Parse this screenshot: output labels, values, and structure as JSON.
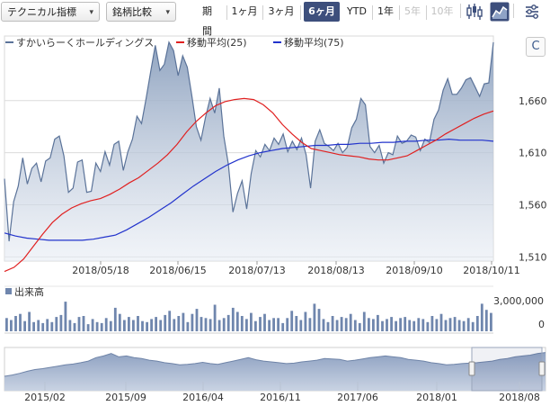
{
  "toolbar": {
    "technical_label": "テクニカル指標",
    "compare_label": "銘柄比較",
    "period_label": "期間",
    "periods": [
      {
        "label": "1ヶ月",
        "state": "normal"
      },
      {
        "label": "3ヶ月",
        "state": "normal"
      },
      {
        "label": "6ヶ月",
        "state": "active"
      },
      {
        "label": "YTD",
        "state": "normal"
      },
      {
        "label": "1年",
        "state": "normal"
      },
      {
        "label": "5年",
        "state": "disabled"
      },
      {
        "label": "10年",
        "state": "disabled"
      }
    ],
    "chart_type_icons": [
      "candlestick-icon",
      "area-chart-icon",
      "settings-icon"
    ],
    "active_chart_type": "area-chart-icon",
    "refresh_symbol": "C"
  },
  "colors": {
    "price_line": "#5b7399",
    "price_fill_top": "#8a9fbd",
    "ma25": "#e02020",
    "ma75": "#2233cc",
    "volume_bar": "#6f86ad",
    "accent": "#3d4f7c"
  },
  "chart_data": [
    {
      "type": "area",
      "legend": [
        "すかいらーくホールディングス",
        "移動平均(25)",
        "移動平均(75)"
      ],
      "legend_position": "top-left",
      "x_ticks": [
        "2018/05/18",
        "2018/06/15",
        "2018/07/13",
        "2018/08/13",
        "2018/09/10",
        "2018/10/11"
      ],
      "y_ticks": [
        1510,
        1560,
        1610,
        1660
      ],
      "y_tick_labels": [
        "1,510",
        "1,560",
        "1,610",
        "1,660"
      ],
      "ylim": [
        1506,
        1722
      ],
      "grid": true,
      "price": [
        1585,
        1525,
        1563,
        1578,
        1605,
        1580,
        1595,
        1600,
        1582,
        1602,
        1605,
        1623,
        1626,
        1607,
        1572,
        1576,
        1601,
        1603,
        1572,
        1573,
        1600,
        1592,
        1611,
        1598,
        1618,
        1621,
        1593,
        1611,
        1623,
        1645,
        1638,
        1662,
        1688,
        1713,
        1689,
        1695,
        1716,
        1708,
        1684,
        1703,
        1692,
        1665,
        1635,
        1622,
        1644,
        1662,
        1648,
        1672,
        1626,
        1599,
        1553,
        1571,
        1583,
        1556,
        1590,
        1612,
        1606,
        1618,
        1612,
        1624,
        1618,
        1628,
        1611,
        1621,
        1613,
        1624,
        1608,
        1576,
        1621,
        1632,
        1619,
        1616,
        1612,
        1619,
        1610,
        1615,
        1634,
        1642,
        1662,
        1656,
        1616,
        1610,
        1617,
        1600,
        1610,
        1608,
        1626,
        1619,
        1621,
        1627,
        1625,
        1612,
        1623,
        1620,
        1642,
        1651,
        1670,
        1681,
        1666,
        1666,
        1672,
        1680,
        1682,
        1673,
        1664,
        1676,
        1677,
        1716
      ],
      "ma25": [
        1496,
        1500,
        1508,
        1520,
        1532,
        1543,
        1551,
        1557,
        1561,
        1564,
        1566,
        1570,
        1575,
        1581,
        1586,
        1593,
        1600,
        1608,
        1618,
        1630,
        1640,
        1648,
        1655,
        1659,
        1661,
        1662,
        1661,
        1656,
        1648,
        1637,
        1628,
        1620,
        1614,
        1612,
        1610,
        1608,
        1607,
        1606,
        1604,
        1603,
        1603,
        1605,
        1607,
        1612,
        1617,
        1622,
        1628,
        1633,
        1638,
        1643,
        1647,
        1650
      ],
      "ma75": [
        1533,
        1530,
        1528,
        1527,
        1526,
        1526,
        1526,
        1526,
        1527,
        1529,
        1531,
        1536,
        1542,
        1548,
        1555,
        1562,
        1570,
        1578,
        1585,
        1592,
        1598,
        1603,
        1607,
        1610,
        1612,
        1614,
        1615,
        1616,
        1617,
        1617,
        1618,
        1618,
        1619,
        1619,
        1620,
        1620,
        1621,
        1621,
        1622,
        1622,
        1623,
        1622,
        1622,
        1622,
        1621
      ]
    },
    {
      "type": "bar",
      "title": "出来高",
      "y_tick_labels": [
        "3,000,000",
        "0"
      ],
      "ylim": [
        0,
        3000000
      ],
      "values": [
        1300000,
        1100000,
        1500000,
        1700000,
        1000000,
        1900000,
        900000,
        1100000,
        800000,
        1200000,
        900000,
        1400000,
        1600000,
        2900000,
        1100000,
        800000,
        1400000,
        1500000,
        700000,
        1200000,
        900000,
        800000,
        1300000,
        1000000,
        2300000,
        1700000,
        1100000,
        1400000,
        1100000,
        1500000,
        1000000,
        900000,
        1200000,
        1400000,
        1100000,
        1600000,
        2000000,
        1200000,
        1500000,
        1800000,
        900000,
        1700000,
        2200000,
        1400000,
        1300000,
        1200000,
        2600000,
        1100000,
        1300000,
        1600000,
        2300000,
        1900000,
        1500000,
        1200000,
        1800000,
        1000000,
        1400000,
        1700000,
        1100000,
        1300000,
        1300000,
        800000,
        1300000,
        2000000,
        1500000,
        1100000,
        1900000,
        1300000,
        2700000,
        2200000,
        1200000,
        900000,
        1500000,
        1100000,
        1400000,
        1300000,
        1700000,
        1100000,
        800000,
        1900000,
        1300000,
        1200000,
        1600000,
        1000000,
        1200000,
        1400000,
        1000000,
        1300000,
        1400000,
        1100000,
        1000000,
        1300000,
        1200000,
        900000,
        1500000,
        1200000,
        1700000,
        1100000,
        1300000,
        1400000,
        1100000,
        1000000,
        1300000,
        900000,
        1500000,
        2700000,
        2100000,
        1800000
      ]
    },
    {
      "type": "area",
      "role": "navigator",
      "x_ticks": [
        "2015/02",
        "2015/09",
        "2016/04",
        "2016/11",
        "2017/06",
        "2018/01",
        "2018/08"
      ],
      "values": [
        1420,
        1435,
        1455,
        1480,
        1500,
        1510,
        1525,
        1540,
        1555,
        1565,
        1580,
        1600,
        1640,
        1660,
        1690,
        1650,
        1660,
        1640,
        1630,
        1610,
        1600,
        1580,
        1570,
        1555,
        1560,
        1570,
        1585,
        1570,
        1560,
        1580,
        1600,
        1620,
        1640,
        1615,
        1600,
        1590,
        1580,
        1570,
        1575,
        1590,
        1600,
        1610,
        1630,
        1625,
        1620,
        1600,
        1610,
        1625,
        1640,
        1650,
        1660,
        1650,
        1640,
        1620,
        1610,
        1600,
        1580,
        1570,
        1555,
        1560,
        1570,
        1575,
        1580,
        1590,
        1600,
        1620,
        1630,
        1650,
        1660,
        1670,
        1690,
        1700
      ],
      "ylim": [
        1250,
        1760
      ]
    }
  ]
}
